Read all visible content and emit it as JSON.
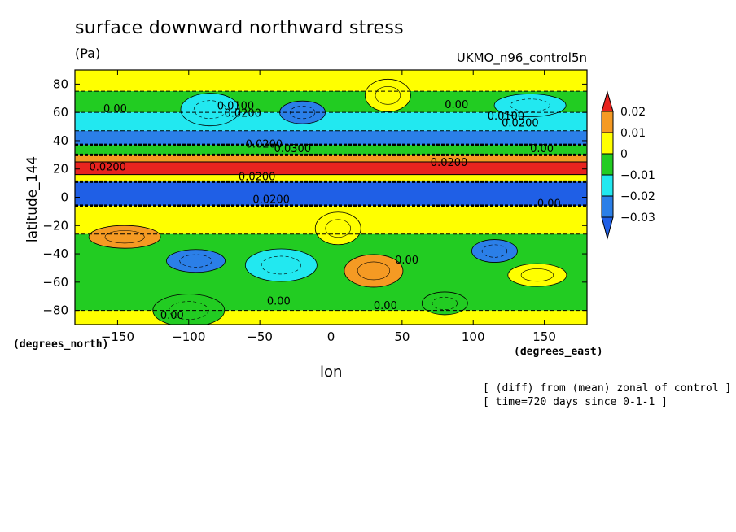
{
  "chart_data": {
    "type": "heatmap",
    "title": "surface downward northward stress",
    "units": "(Pa)",
    "model": "UKMO_n96_control5n",
    "xlabel": "lon",
    "ylabel": "latitude_144",
    "x_unit_label": "(degrees_east)",
    "y_unit_label": "(degrees_north)",
    "xlim": [
      -180,
      180
    ],
    "ylim": [
      -90,
      90
    ],
    "xticks": [
      -150,
      -100,
      -50,
      0,
      50,
      100,
      150
    ],
    "yticks": [
      80,
      60,
      40,
      20,
      0,
      -20,
      -40,
      -60,
      -80
    ],
    "notes": [
      "[ (diff) from (mean) zonal of control ]",
      "[ time=720 days since 0-1-1 ]"
    ],
    "colorbar": {
      "levels": [
        0.02,
        0.01,
        0,
        -0.01,
        -0.02,
        -0.03
      ],
      "labels": [
        "0.02",
        "0.01",
        "0",
        "-0.01",
        "-0.02",
        "-0.03"
      ],
      "colors": [
        "#e8231f",
        "#f59a23",
        "#ffff00",
        "#22cc22",
        "#22e8f0",
        "#2b7fe8",
        "#1f5fe6"
      ]
    },
    "bands": [
      {
        "lat_top": 90,
        "lat_bottom": 75,
        "value": 0.002
      },
      {
        "lat_top": 75,
        "lat_bottom": 60,
        "value": -0.008
      },
      {
        "lat_top": 60,
        "lat_bottom": 47,
        "value": -0.018
      },
      {
        "lat_top": 47,
        "lat_bottom": 37,
        "value": -0.028
      },
      {
        "lat_top": 37,
        "lat_bottom": 30,
        "value": -0.005
      },
      {
        "lat_top": 30,
        "lat_bottom": 25,
        "value": 0.015
      },
      {
        "lat_top": 25,
        "lat_bottom": 16,
        "value": 0.022
      },
      {
        "lat_top": 16,
        "lat_bottom": 11,
        "value": 0.003
      },
      {
        "lat_top": 11,
        "lat_bottom": -6,
        "value": -0.035
      },
      {
        "lat_top": -6,
        "lat_bottom": -26,
        "value": 0.003
      },
      {
        "lat_top": -26,
        "lat_bottom": -80,
        "value": -0.008
      },
      {
        "lat_top": -80,
        "lat_bottom": -90,
        "value": 0.002
      }
    ],
    "features": [
      {
        "lon": -20,
        "lat": 60,
        "value": -0.022
      },
      {
        "lon": -85,
        "lat": 62,
        "value": -0.012
      },
      {
        "lon": 140,
        "lat": 65,
        "value": -0.015
      },
      {
        "lon": 40,
        "lat": 72,
        "value": 0.002
      },
      {
        "lon": -95,
        "lat": -45,
        "value": -0.022
      },
      {
        "lon": -35,
        "lat": -48,
        "value": -0.018
      },
      {
        "lon": 115,
        "lat": -38,
        "value": -0.022
      },
      {
        "lon": 30,
        "lat": -52,
        "value": 0.012
      },
      {
        "lon": -145,
        "lat": -28,
        "value": 0.012
      },
      {
        "lon": 5,
        "lat": -22,
        "value": 0.003
      },
      {
        "lon": 145,
        "lat": -55,
        "value": 0.002
      },
      {
        "lon": -100,
        "lat": -80,
        "value": -0.003
      },
      {
        "lon": 80,
        "lat": -75,
        "value": -0.004
      }
    ],
    "contour_labels": [
      {
        "text": "0.00",
        "lon": -160,
        "lat": 60
      },
      {
        "text": "0.0100",
        "lon": -80,
        "lat": 62
      },
      {
        "text": "0.0200",
        "lon": -75,
        "lat": 57
      },
      {
        "text": "0.00",
        "lon": 80,
        "lat": 63
      },
      {
        "text": "0.0100",
        "lon": 110,
        "lat": 55
      },
      {
        "text": "0.0200",
        "lon": 120,
        "lat": 50
      },
      {
        "text": "0.0200",
        "lon": -60,
        "lat": 35
      },
      {
        "text": "0.0300",
        "lon": -40,
        "lat": 32
      },
      {
        "text": "0.00",
        "lon": 140,
        "lat": 32
      },
      {
        "text": "0.0200",
        "lon": -170,
        "lat": 19
      },
      {
        "text": "0.0200",
        "lon": 70,
        "lat": 22
      },
      {
        "text": "0.0200",
        "lon": -65,
        "lat": 12
      },
      {
        "text": "0.0200",
        "lon": -55,
        "lat": -4
      },
      {
        "text": "0.00",
        "lon": 145,
        "lat": -7
      },
      {
        "text": "0.00",
        "lon": 45,
        "lat": -47
      },
      {
        "text": "0.00",
        "lon": -45,
        "lat": -76
      },
      {
        "text": "0.00",
        "lon": 30,
        "lat": -79
      },
      {
        "text": "0.00",
        "lon": -120,
        "lat": -86
      }
    ]
  }
}
